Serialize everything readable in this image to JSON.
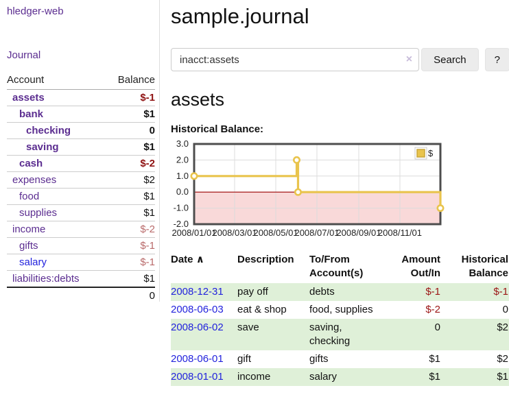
{
  "brand": "hledger-web",
  "nav": {
    "journal_label": "Journal"
  },
  "sidebar_accounts": {
    "headers": {
      "account": "Account",
      "balance": "Balance"
    },
    "rows": [
      {
        "name": "assets",
        "indent": 1,
        "bold": true,
        "name_color": "purple",
        "balance": "$-1",
        "balance_style": "neg-strong"
      },
      {
        "name": "bank",
        "indent": 2,
        "bold": true,
        "name_color": "purple",
        "balance": "$1",
        "balance_style": "black"
      },
      {
        "name": "checking",
        "indent": 3,
        "bold": true,
        "name_color": "purple",
        "balance": "0",
        "balance_style": "black"
      },
      {
        "name": "saving",
        "indent": 3,
        "bold": true,
        "name_color": "purple",
        "balance": "$1",
        "balance_style": "black"
      },
      {
        "name": "cash",
        "indent": 2,
        "bold": true,
        "name_color": "purple",
        "balance": "$-2",
        "balance_style": "neg-strong"
      },
      {
        "name": "expenses",
        "indent": 1,
        "bold": false,
        "name_color": "purple",
        "balance": "$2",
        "balance_style": "black"
      },
      {
        "name": "food",
        "indent": 2,
        "bold": false,
        "name_color": "purple",
        "balance": "$1",
        "balance_style": "black"
      },
      {
        "name": "supplies",
        "indent": 2,
        "bold": false,
        "name_color": "purple",
        "balance": "$1",
        "balance_style": "black"
      },
      {
        "name": "income",
        "indent": 1,
        "bold": false,
        "name_color": "purple",
        "balance": "$-2",
        "balance_style": "neg-light"
      },
      {
        "name": "gifts",
        "indent": 2,
        "bold": false,
        "name_color": "purple",
        "balance": "$-1",
        "balance_style": "neg-light"
      },
      {
        "name": "salary",
        "indent": 2,
        "bold": false,
        "name_color": "blue",
        "balance": "$-1",
        "balance_style": "neg-light"
      },
      {
        "name": "liabilities:debts",
        "indent": 1,
        "bold": false,
        "name_color": "purple",
        "balance": "$1",
        "balance_style": "black"
      }
    ],
    "total": "0"
  },
  "header": {
    "title": "sample.journal"
  },
  "search": {
    "value": "inacct:assets",
    "clear_icon": "×",
    "button_label": "Search",
    "help_label": "?"
  },
  "account_page": {
    "title": "assets",
    "chart_label": "Historical Balance:"
  },
  "chart_data": {
    "type": "line",
    "step": true,
    "title": "Historical Balance",
    "x_start": "2008-01-01",
    "x_end": "2008-12-31",
    "ylim": [
      -2,
      3
    ],
    "yticks": [
      "3.0",
      "2.0",
      "1.0",
      "0.0",
      "-1.0",
      "-2.0"
    ],
    "ytick_values": [
      3,
      2,
      1,
      0,
      -1,
      -2
    ],
    "xticks": [
      {
        "label": "2008/01/01",
        "date": "2008-01-01"
      },
      {
        "label": "2008/03/01",
        "date": "2008-03-01"
      },
      {
        "label": "2008/05/01",
        "date": "2008-05-01"
      },
      {
        "label": "2008/07/01",
        "date": "2008-07-01"
      },
      {
        "label": "2008/09/01",
        "date": "2008-09-01"
      },
      {
        "label": "2008/11/01",
        "date": "2008-11-01"
      }
    ],
    "series": [
      {
        "name": "$",
        "color": "#e9c44d",
        "points": [
          {
            "date": "2008-01-01",
            "value": 1
          },
          {
            "date": "2008-06-01",
            "value": 2
          },
          {
            "date": "2008-06-03",
            "value": 0
          },
          {
            "date": "2008-12-31",
            "value": -1
          }
        ]
      }
    ],
    "legend_position": "top-right",
    "grid": true,
    "colors": {
      "grid": "#dcdcdc",
      "border": "#4d4d4d",
      "negative_region_fill": "#f9d9d9",
      "zero_line": "#a00000",
      "marker_fill": "#ffffff"
    }
  },
  "transactions": {
    "sort_indicator": "∧",
    "headers": {
      "date": "Date",
      "description": "Description",
      "accounts": "To/From Account(s)",
      "amount": "Amount Out/In",
      "balance": "Historical Balance"
    },
    "rows": [
      {
        "date": "2008-12-31",
        "description": "pay off",
        "accounts": "debts",
        "amount": "$-1",
        "amount_negative": true,
        "balance": "$-1",
        "balance_negative": true,
        "highlight": true
      },
      {
        "date": "2008-06-03",
        "description": "eat & shop",
        "accounts": "food, supplies",
        "amount": "$-2",
        "amount_negative": true,
        "balance": "0",
        "balance_negative": false,
        "highlight": false
      },
      {
        "date": "2008-06-02",
        "description": "save",
        "accounts": "saving,\nchecking",
        "amount": "0",
        "amount_negative": false,
        "balance": "$2",
        "balance_negative": false,
        "highlight": true
      },
      {
        "date": "2008-06-01",
        "description": "gift",
        "accounts": "gifts",
        "amount": "$1",
        "amount_negative": false,
        "balance": "$2",
        "balance_negative": false,
        "highlight": false
      },
      {
        "date": "2008-01-01",
        "description": "income",
        "accounts": "salary",
        "amount": "$1",
        "amount_negative": false,
        "balance": "$1",
        "balance_negative": false,
        "highlight": true
      }
    ]
  },
  "colors": {
    "link_purple": "#5b2d90",
    "link_blue": "#2222dd",
    "negative_strong": "#8f1212",
    "negative_light": "#b96a6a",
    "table_negative": "#9b1515",
    "row_highlight": "#dff0d8",
    "series_gold": "#e9c44d"
  }
}
